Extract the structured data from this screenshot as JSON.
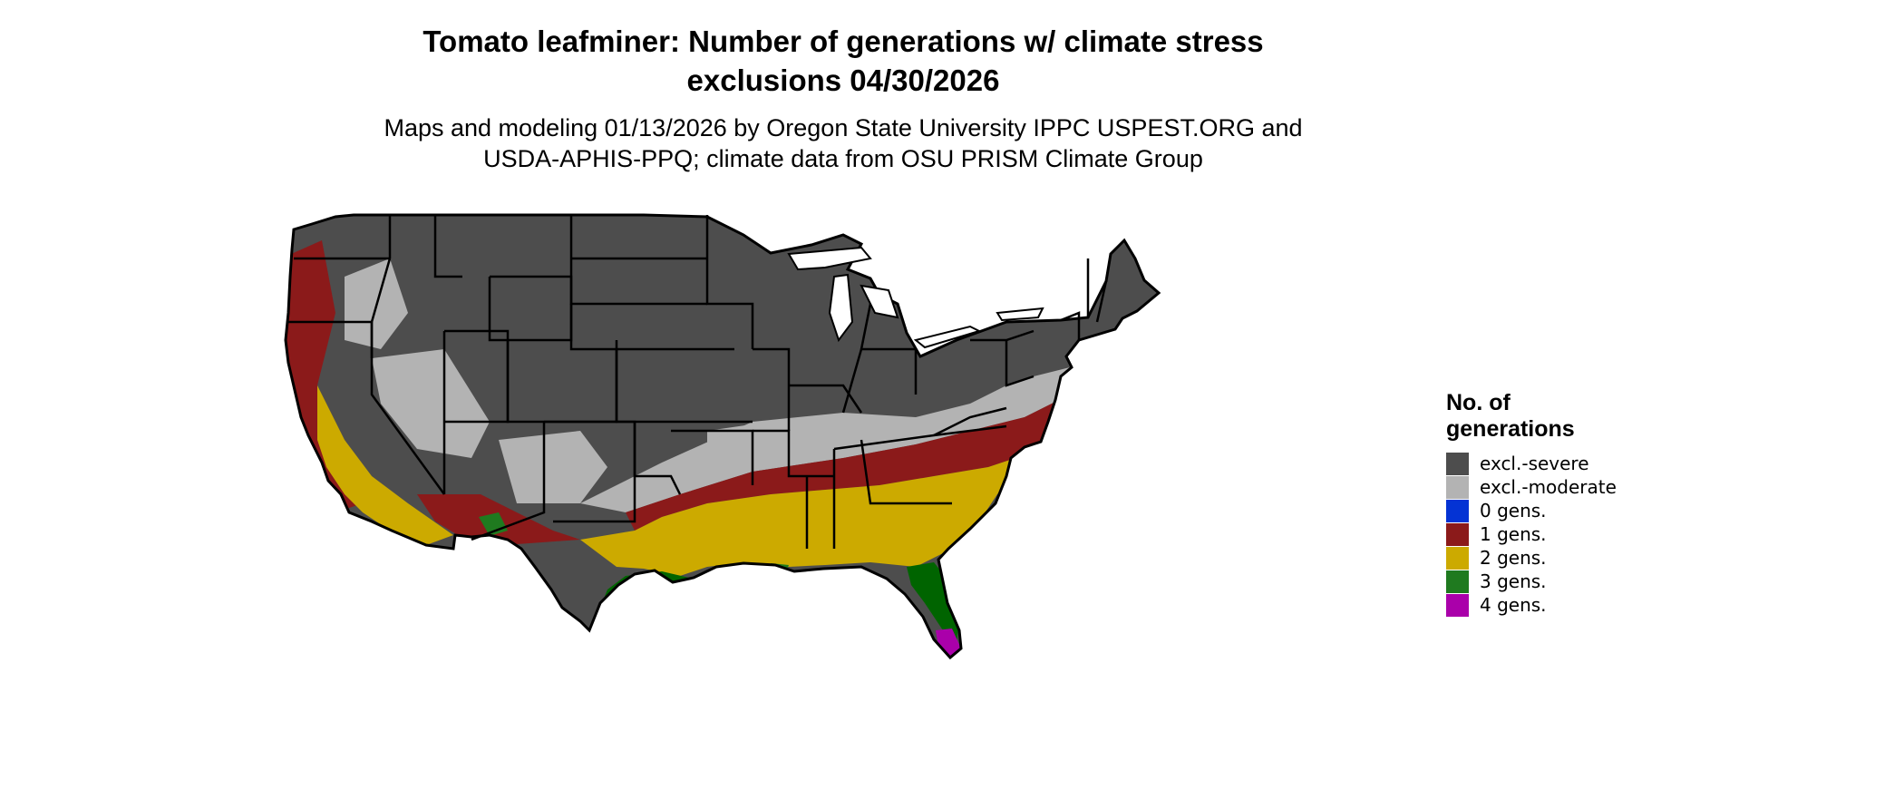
{
  "map": {
    "title_line1": "Tomato leafminer: Number of generations w/ climate stress",
    "title_line2": "exclusions 04/30/2026",
    "subtitle_line1": "Maps and modeling 01/13/2026 by Oregon State University IPPC USPEST.ORG and",
    "subtitle_line2": "USDA-APHIS-PPQ; climate data from OSU PRISM Climate Group"
  },
  "legend": {
    "title": "No. of generations",
    "items": [
      {
        "label": "excl.-severe",
        "color": "#4d4d4d"
      },
      {
        "label": "excl.-moderate",
        "color": "#b3b3b3"
      },
      {
        "label": "0 gens.",
        "color": "#0433d4"
      },
      {
        "label": "1 gens.",
        "color": "#8b1a1a"
      },
      {
        "label": "2 gens.",
        "color": "#ccaa00"
      },
      {
        "label": "3 gens.",
        "color": "#1f7a1f"
      },
      {
        "label": "4 gens.",
        "color": "#aa00aa"
      }
    ]
  }
}
